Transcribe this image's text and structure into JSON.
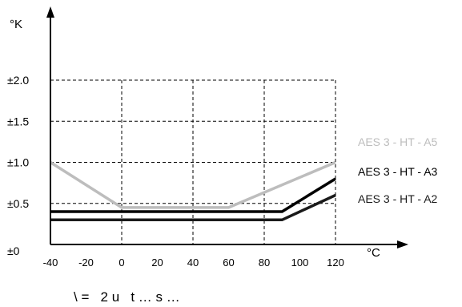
{
  "chart_data": {
    "type": "line",
    "ylabel": "°K",
    "xlabel": "°C",
    "caption": "\\ =   2 u   t … s …",
    "x_ticks": [
      -40,
      -20,
      0,
      20,
      40,
      60,
      80,
      100,
      120
    ],
    "x_tick_labels": [
      "-40",
      "-20",
      "0",
      "20",
      "40",
      "60",
      "80",
      "100",
      "120"
    ],
    "y_ticks": [
      0,
      0.5,
      1.0,
      1.5,
      2.0
    ],
    "y_tick_labels": [
      "±0",
      "±0.5",
      "±1.0",
      "±1.5",
      "±2.0"
    ],
    "xlim": [
      -40,
      120
    ],
    "ylim": [
      0,
      2.0
    ],
    "grid": true,
    "legend": "right",
    "series": [
      {
        "name": "AES 3 - HT - A5",
        "color": "#bdbdbd",
        "x": [
          -40,
          0,
          60,
          120
        ],
        "values": [
          1.0,
          0.45,
          0.45,
          1.0
        ]
      },
      {
        "name": "AES 3 - HT - A3",
        "color": "#000000",
        "x": [
          -40,
          90,
          120
        ],
        "values": [
          0.4,
          0.4,
          0.8
        ]
      },
      {
        "name": "AES 3 - HT - A2",
        "color": "#1a1a1a",
        "x": [
          -40,
          90,
          120
        ],
        "values": [
          0.3,
          0.3,
          0.6
        ]
      }
    ]
  }
}
